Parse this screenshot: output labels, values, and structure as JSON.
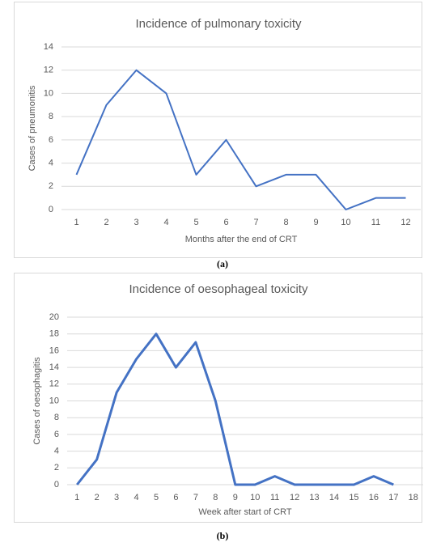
{
  "chart_data": [
    {
      "type": "line",
      "title": "Incidence of pulmonary toxicity",
      "x_label": "Months after the end of CRT",
      "y_label": "Cases of pneumonitis",
      "categories": [
        "1",
        "2",
        "3",
        "4",
        "5",
        "6",
        "7",
        "8",
        "9",
        "10",
        "11",
        "12"
      ],
      "series": [
        {
          "name": "Cases of pneumonitis",
          "color": "#4472c4",
          "values": [
            3,
            9,
            12,
            10,
            3,
            6,
            2,
            3,
            3,
            0,
            1,
            1
          ]
        }
      ],
      "ylim": [
        0,
        14
      ],
      "yticks": [
        0,
        2,
        4,
        6,
        8,
        10,
        12,
        14
      ],
      "grid": true,
      "caption": "(a)"
    },
    {
      "type": "line",
      "title": "Incidence of oesophageal toxicity",
      "x_label": "Week after start of CRT",
      "y_label": "Cases of oesophagitis",
      "categories": [
        "1",
        "2",
        "3",
        "4",
        "5",
        "6",
        "7",
        "8",
        "9",
        "10",
        "11",
        "12",
        "13",
        "14",
        "15",
        "16",
        "17",
        "18"
      ],
      "series": [
        {
          "name": "Cases of oesophagitis",
          "color": "#4472c4",
          "values": [
            0,
            3,
            11,
            15,
            18,
            14,
            17,
            10,
            0,
            0,
            1,
            0,
            0,
            0,
            0,
            1,
            0,
            null
          ]
        }
      ],
      "ylim": [
        0,
        20
      ],
      "yticks": [
        0,
        2,
        4,
        6,
        8,
        10,
        12,
        14,
        16,
        18,
        20
      ],
      "grid": true,
      "caption": "(b)"
    }
  ]
}
